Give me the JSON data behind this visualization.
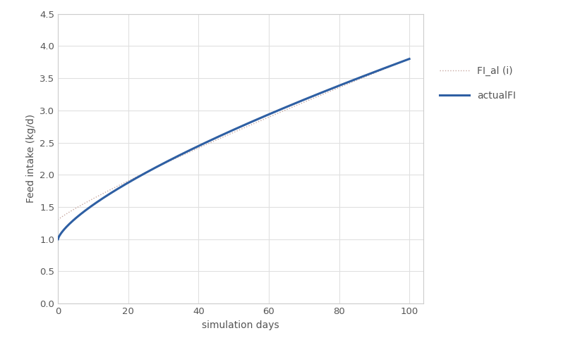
{
  "title": "",
  "xlabel": "simulation days",
  "ylabel": "Feed intake (kg/d)",
  "xlim": [
    0,
    104
  ],
  "ylim": [
    0.0,
    4.5
  ],
  "xticks": [
    0,
    20,
    40,
    60,
    80,
    100
  ],
  "yticks": [
    0.0,
    0.5,
    1.0,
    1.5,
    2.0,
    2.5,
    3.0,
    3.5,
    4.0,
    4.5
  ],
  "actual_color": "#2E5FA3",
  "fial_color": "#C8A8A0",
  "actual_label": "actualFI",
  "fial_label": "FI_al (i)",
  "actual_linewidth": 2.2,
  "fial_linewidth": 1.0,
  "grid_color": "#E0E0E0",
  "background_color": "#FFFFFF",
  "fig_width": 8.22,
  "fig_height": 4.9,
  "actual_power": 0.72,
  "actual_a": 1.0,
  "actual_b": 2.8,
  "fial_a": 1.3,
  "fial_b": 2.5,
  "fial_power": 0.88
}
